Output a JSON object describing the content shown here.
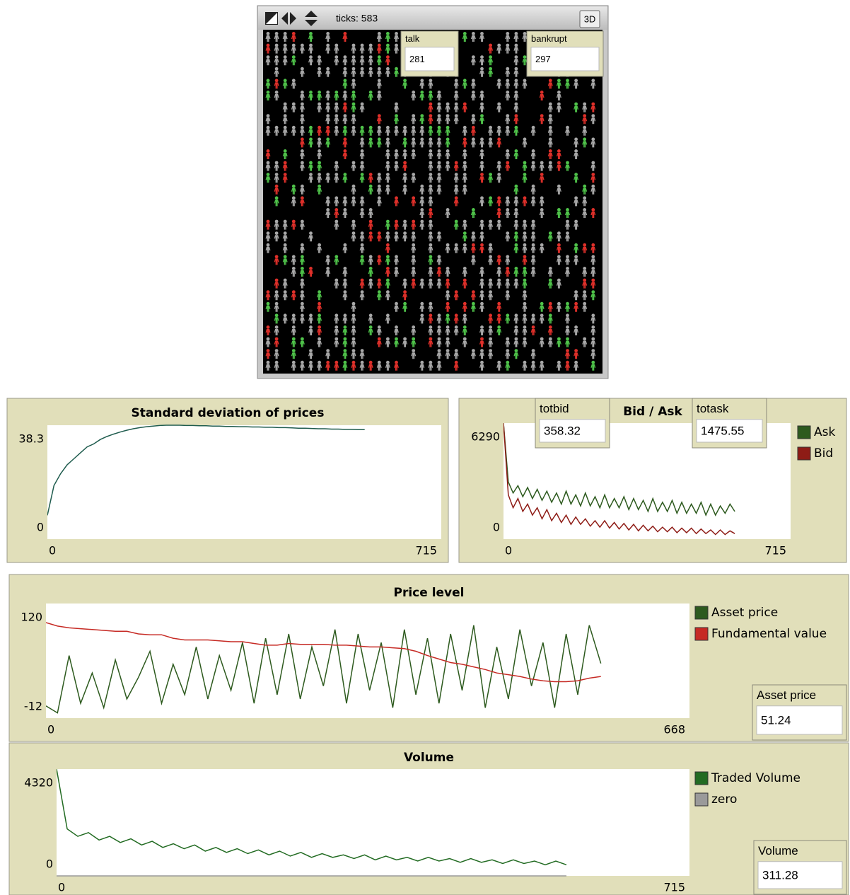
{
  "view": {
    "ticks_label": "ticks: 583",
    "three_d": "3D"
  },
  "monitors": [
    {
      "label": "talk",
      "value": 281
    },
    {
      "label": "bankrupt",
      "value": 297
    },
    {
      "label": "totbid",
      "value": 358.32
    },
    {
      "label": "totask",
      "value": 1475.55
    },
    {
      "label": "Asset price",
      "value": 51.24
    },
    {
      "label": "Volume",
      "value": 311.28
    }
  ],
  "plots": [
    {
      "type": "line",
      "title": "Standard deviation of prices",
      "legend": false,
      "xlim": [
        0,
        715
      ],
      "xticks": [
        0,
        715
      ],
      "ylim": [
        0,
        38.3
      ],
      "yticks": [
        0,
        38.3
      ],
      "x": [
        0,
        12,
        24,
        36,
        48,
        60,
        72,
        84,
        96,
        108,
        120,
        132,
        144,
        156,
        168,
        180,
        192,
        204,
        216,
        228,
        240,
        252,
        264,
        276,
        288,
        300,
        312,
        324,
        336,
        348,
        360,
        372,
        384,
        396,
        408,
        420,
        432,
        444,
        456,
        468,
        480,
        492,
        504,
        516,
        528,
        540,
        552,
        564,
        576
      ],
      "series": [
        {
          "name": "Standard deviation",
          "color": "#1f5c4e",
          "values": [
            8,
            18,
            22,
            25,
            27,
            29,
            31,
            32,
            33.5,
            34.5,
            35.3,
            36,
            36.6,
            37.1,
            37.5,
            37.8,
            38,
            38.2,
            38.3,
            38.3,
            38.3,
            38.2,
            38.2,
            38.1,
            38.1,
            38,
            38,
            37.9,
            37.9,
            37.8,
            37.8,
            37.7,
            37.7,
            37.6,
            37.6,
            37.5,
            37.5,
            37.4,
            37.3,
            37.3,
            37.2,
            37.1,
            37.1,
            37,
            37,
            36.9,
            36.9,
            36.8,
            36.8
          ]
        }
      ]
    },
    {
      "type": "line",
      "title": "Bid / Ask",
      "legend": true,
      "xlim": [
        0,
        715
      ],
      "xticks": [
        0,
        715
      ],
      "ylim": [
        0,
        6290
      ],
      "yticks": [
        0,
        6290
      ],
      "x": [
        0,
        12,
        24,
        36,
        48,
        60,
        72,
        84,
        96,
        108,
        120,
        132,
        144,
        156,
        168,
        180,
        192,
        204,
        216,
        228,
        240,
        252,
        264,
        276,
        288,
        300,
        312,
        324,
        336,
        348,
        360,
        372,
        384,
        396,
        408,
        420,
        432,
        444,
        456,
        468,
        480,
        492,
        504,
        516,
        528,
        540,
        552,
        564,
        576
      ],
      "series": [
        {
          "name": "Ask",
          "color": "#2d5a1e",
          "values": [
            6290,
            3100,
            2500,
            2900,
            2300,
            2800,
            2200,
            2700,
            2100,
            2600,
            2000,
            2500,
            1900,
            2600,
            1900,
            2400,
            1800,
            2500,
            1800,
            2300,
            1700,
            2400,
            1700,
            2200,
            1700,
            2300,
            1600,
            2200,
            1600,
            2100,
            1500,
            2200,
            1500,
            2000,
            1500,
            2100,
            1400,
            2000,
            1400,
            1900,
            1400,
            2000,
            1300,
            1900,
            1300,
            1800,
            1400,
            1900,
            1500
          ]
        },
        {
          "name": "Bid",
          "color": "#8e1c16",
          "values": [
            6290,
            2400,
            1700,
            2200,
            1500,
            1900,
            1300,
            1700,
            1100,
            1600,
            1000,
            1400,
            900,
            1300,
            800,
            1200,
            800,
            1100,
            700,
            1000,
            650,
            1000,
            600,
            900,
            550,
            850,
            500,
            800,
            450,
            750,
            450,
            700,
            400,
            650,
            400,
            650,
            350,
            600,
            350,
            600,
            300,
            550,
            300,
            500,
            250,
            500,
            250,
            450,
            300
          ]
        }
      ]
    },
    {
      "type": "line",
      "title": "Price level",
      "legend": true,
      "xlim": [
        0,
        668
      ],
      "xticks": [
        0,
        668
      ],
      "ylim": [
        -12,
        120
      ],
      "yticks": [
        -12,
        120
      ],
      "x": [
        0,
        12,
        24,
        36,
        48,
        60,
        72,
        84,
        96,
        108,
        120,
        132,
        144,
        156,
        168,
        180,
        192,
        204,
        216,
        228,
        240,
        252,
        264,
        276,
        288,
        300,
        312,
        324,
        336,
        348,
        360,
        372,
        384,
        396,
        408,
        420,
        432,
        444,
        456,
        468,
        480,
        492,
        504,
        516,
        528,
        540,
        552,
        564,
        576
      ],
      "series": [
        {
          "name": "Asset price",
          "color": "#2d5a1e",
          "values": [
            2,
            -6,
            60,
            5,
            40,
            0,
            55,
            10,
            35,
            65,
            5,
            50,
            15,
            70,
            10,
            60,
            20,
            75,
            5,
            80,
            15,
            85,
            10,
            70,
            25,
            90,
            5,
            85,
            20,
            75,
            0,
            90,
            15,
            80,
            5,
            85,
            20,
            95,
            0,
            70,
            10,
            90,
            25,
            75,
            0,
            85,
            15,
            95,
            51
          ]
        },
        {
          "name": "Fundamental value",
          "color": "#c62a24",
          "values": [
            98,
            94,
            92,
            91,
            90,
            89,
            88,
            88,
            85,
            84,
            84,
            80,
            78,
            78,
            78,
            77,
            76,
            76,
            74,
            72,
            72,
            74,
            73,
            73,
            73,
            72,
            72,
            71,
            70,
            70,
            69,
            68,
            65,
            60,
            56,
            52,
            50,
            47,
            44,
            40,
            38,
            36,
            33,
            31,
            30,
            30,
            31,
            34,
            36
          ]
        }
      ]
    },
    {
      "type": "line",
      "title": "Volume",
      "legend": true,
      "xlim": [
        0,
        715
      ],
      "xticks": [
        0,
        715
      ],
      "ylim": [
        0,
        4320
      ],
      "yticks": [
        0,
        4320
      ],
      "x": [
        0,
        12,
        24,
        36,
        48,
        60,
        72,
        84,
        96,
        108,
        120,
        132,
        144,
        156,
        168,
        180,
        192,
        204,
        216,
        228,
        240,
        252,
        264,
        276,
        288,
        300,
        312,
        324,
        336,
        348,
        360,
        372,
        384,
        396,
        408,
        420,
        432,
        444,
        456,
        468,
        480,
        492,
        504,
        516,
        528,
        540,
        552,
        564,
        576
      ],
      "series": [
        {
          "name": "Traded Volume",
          "color": "#226b22",
          "values": [
            4320,
            1900,
            1600,
            1750,
            1450,
            1600,
            1350,
            1500,
            1250,
            1400,
            1150,
            1300,
            1100,
            1250,
            1000,
            1150,
            950,
            1100,
            900,
            1050,
            850,
            1000,
            800,
            950,
            750,
            900,
            750,
            850,
            700,
            850,
            650,
            800,
            650,
            750,
            600,
            750,
            600,
            700,
            550,
            700,
            550,
            650,
            500,
            650,
            500,
            600,
            450,
            600,
            450
          ]
        },
        {
          "name": "zero",
          "color": "#9a9a9a",
          "values": [
            0,
            0,
            0,
            0,
            0,
            0,
            0,
            0,
            0,
            0,
            0,
            0,
            0,
            0,
            0,
            0,
            0,
            0,
            0,
            0,
            0,
            0,
            0,
            0,
            0,
            0,
            0,
            0,
            0,
            0,
            0,
            0,
            0,
            0,
            0,
            0,
            0,
            0,
            0,
            0,
            0,
            0,
            0,
            0,
            0,
            0,
            0,
            0,
            0
          ]
        }
      ]
    }
  ]
}
